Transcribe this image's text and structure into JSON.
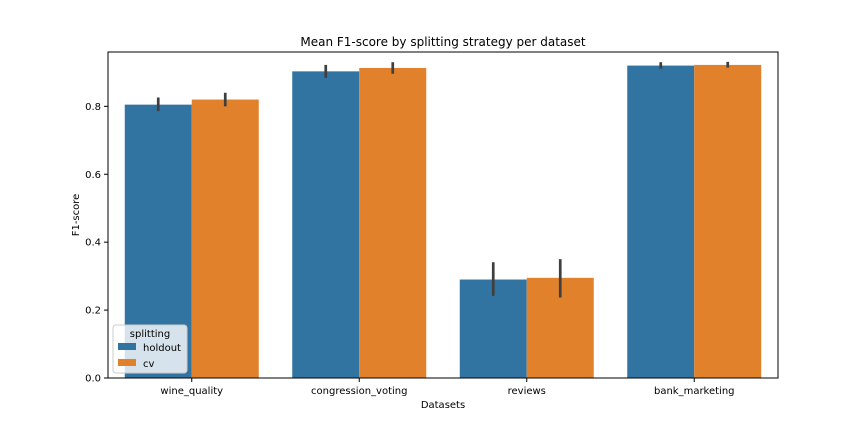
{
  "chart_data": {
    "type": "bar",
    "title": "Mean F1-score by splitting strategy per dataset",
    "xlabel": "Datasets",
    "ylabel": "F1-score",
    "categories": [
      "wine_quality",
      "congression_voting",
      "reviews",
      "bank_marketing"
    ],
    "ylim": [
      0,
      0.96
    ],
    "yticks": [
      "0.0",
      "0.2",
      "0.4",
      "0.6",
      "0.8"
    ],
    "grid": false,
    "legend": {
      "title": "splitting",
      "placement": "lower-left"
    },
    "series": [
      {
        "name": "holdout",
        "color": "#3274a1",
        "values": [
          0.805,
          0.903,
          0.29,
          0.92
        ],
        "error_low": [
          0.786,
          0.884,
          0.242,
          0.911
        ],
        "error_high": [
          0.826,
          0.922,
          0.341,
          0.93
        ]
      },
      {
        "name": "cv",
        "color": "#e1812c",
        "values": [
          0.82,
          0.913,
          0.295,
          0.922
        ],
        "error_low": [
          0.8,
          0.896,
          0.237,
          0.914
        ],
        "error_high": [
          0.84,
          0.93,
          0.35,
          0.931
        ]
      }
    ],
    "errorbar_color": "#3f3f3f"
  }
}
